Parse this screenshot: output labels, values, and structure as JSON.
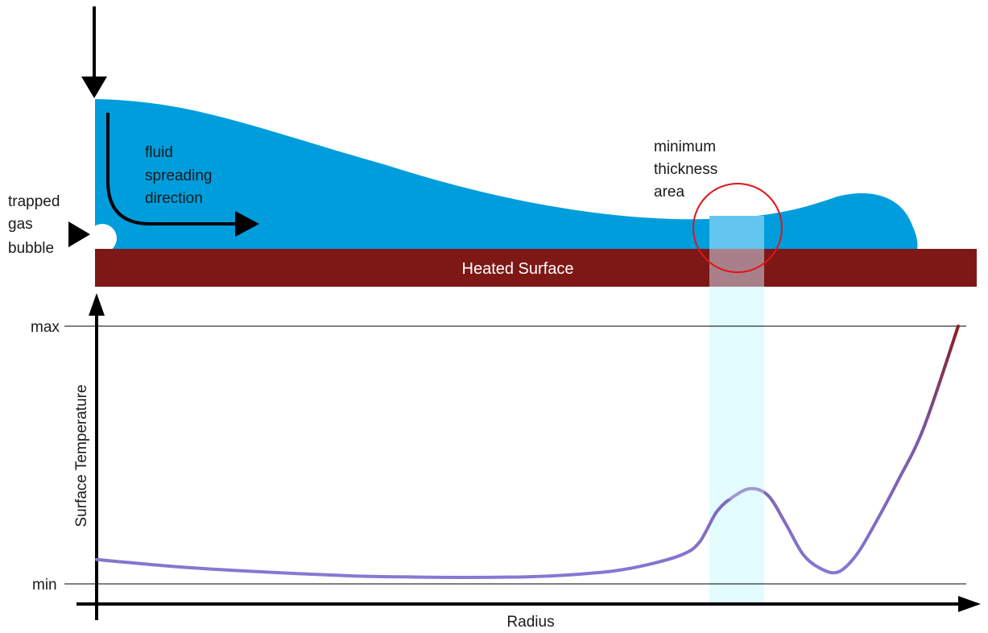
{
  "labels": {
    "trapped_gas": [
      "trapped",
      "gas",
      "bubble"
    ],
    "fluid_spreading": [
      "fluid",
      "spreading",
      "direction"
    ],
    "min_thickness": [
      "minimum",
      "thickness",
      "area"
    ],
    "heated_surface": "Heated Surface"
  },
  "chart_data": {
    "type": "line",
    "title": "",
    "xlabel": "Radius",
    "ylabel": "Surface Temperature",
    "y_ticks": [
      "max",
      "min"
    ],
    "ylim": [
      0,
      1
    ],
    "xlim": [
      0,
      1
    ],
    "series": [
      {
        "name": "Surface Temperature",
        "x": [
          0.0,
          0.1,
          0.2,
          0.3,
          0.35,
          0.4,
          0.45,
          0.5,
          0.55,
          0.6,
          0.64,
          0.68,
          0.7,
          0.72,
          0.74,
          0.76,
          0.78,
          0.8,
          0.82,
          0.84,
          0.86,
          0.88,
          0.9,
          0.93,
          0.96,
          1.0
        ],
        "y": [
          0.08,
          0.05,
          0.03,
          0.015,
          0.012,
          0.01,
          0.01,
          0.012,
          0.02,
          0.035,
          0.06,
          0.1,
          0.15,
          0.27,
          0.33,
          0.36,
          0.33,
          0.22,
          0.1,
          0.045,
          0.03,
          0.09,
          0.2,
          0.39,
          0.6,
          1.0
        ]
      }
    ]
  },
  "colors": {
    "fluid": "#009ddc",
    "surface": "#7d1817",
    "highlight": "#e2fcff",
    "circle": "#e0141a",
    "curve_cool": "#8878d4",
    "curve_hot": "#8a1c1c"
  }
}
